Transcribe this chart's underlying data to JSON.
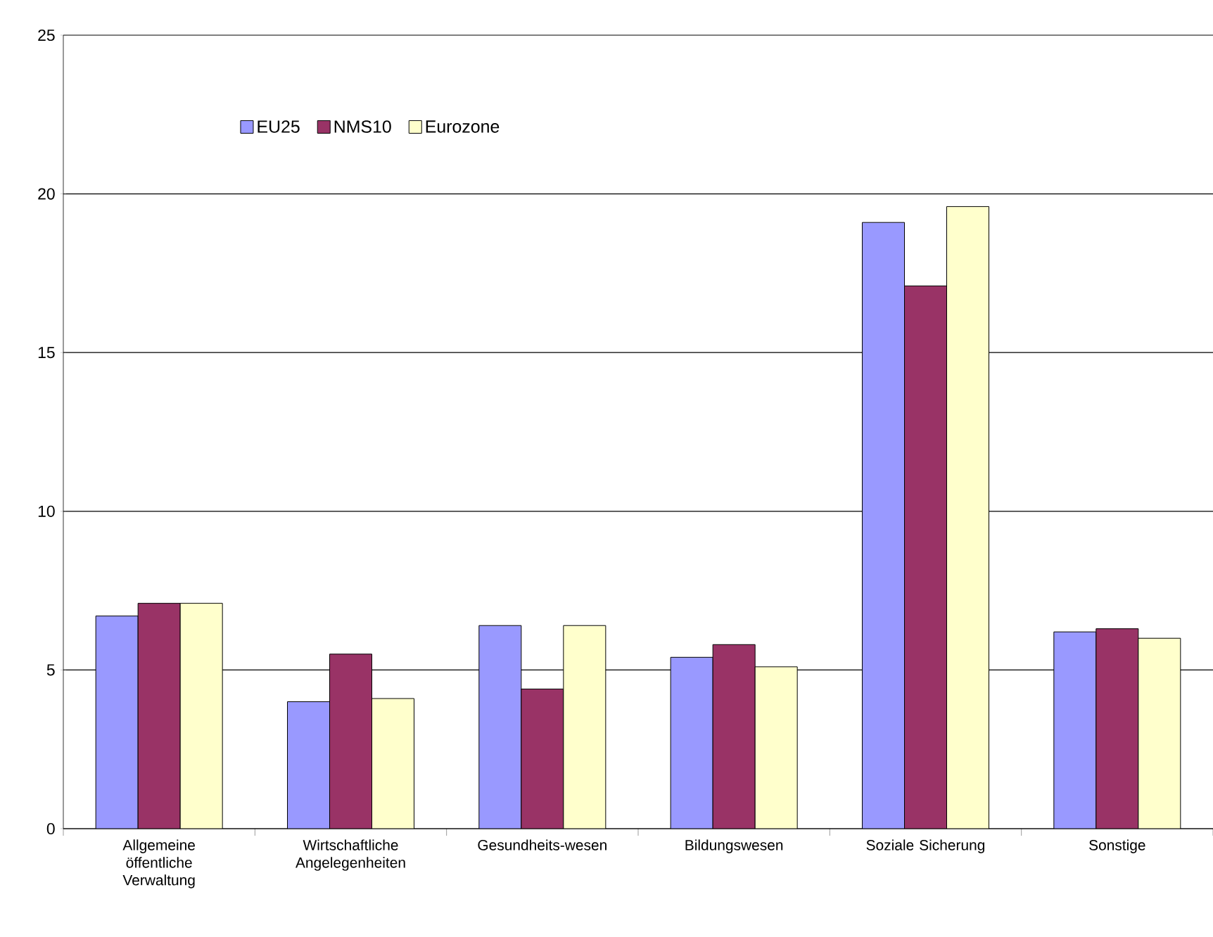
{
  "chart_data": {
    "type": "bar",
    "categories": [
      "Allgemeine öffentliche Verwaltung",
      "Wirtschaftliche Angelegenheiten",
      "Gesundheits-wesen",
      "Bildungswesen",
      "Soziale Sicherung",
      "Sonstige"
    ],
    "series": [
      {
        "name": "EU25",
        "color": "#9999ff",
        "values": [
          6.7,
          4.0,
          6.4,
          5.4,
          19.1,
          6.2
        ]
      },
      {
        "name": "NMS10",
        "color": "#993366",
        "values": [
          7.1,
          5.5,
          4.4,
          5.8,
          17.1,
          6.3
        ]
      },
      {
        "name": "Eurozone",
        "color": "#ffffcc",
        "values": [
          7.1,
          4.1,
          6.4,
          5.1,
          19.6,
          6.0
        ]
      }
    ],
    "ylim": [
      0,
      25
    ],
    "yticks": [
      0,
      5,
      10,
      15,
      20,
      25
    ],
    "grid": "y",
    "legend": "top left"
  }
}
